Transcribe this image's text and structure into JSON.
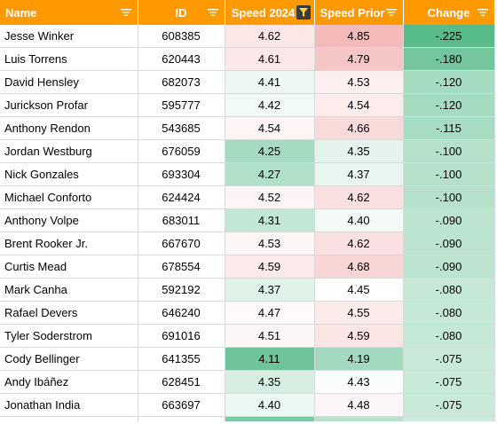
{
  "headers": {
    "name": "Name",
    "id": "ID",
    "speed_2024": "Speed 2024",
    "speed_prior": "Speed Prior",
    "change": "Change"
  },
  "filter_icons": [
    "filter-lines-icon",
    "filter-lines-icon",
    "filter-active-funnel-icon",
    "filter-lines-icon",
    "filter-lines-icon"
  ],
  "rows": [
    {
      "name": "Jesse Winker",
      "id": "608385",
      "speed_2024": "4.62",
      "speed_prior": "4.85",
      "change": "-.225",
      "c24": "#fce6e6",
      "cp": "#f4b9b9",
      "cc": "#57bb8a"
    },
    {
      "name": "Luis Torrens",
      "id": "620443",
      "speed_2024": "4.61",
      "speed_prior": "4.79",
      "change": "-.180",
      "c24": "#fce8e8",
      "cp": "#f6c5c5",
      "cc": "#73c69d"
    },
    {
      "name": "David Hensley",
      "id": "682073",
      "speed_2024": "4.41",
      "speed_prior": "4.53",
      "change": "-.120",
      "c24": "#eef8f2",
      "cp": "#fdefef",
      "cc": "#a5dbc0"
    },
    {
      "name": "Jurickson Profar",
      "id": "595777",
      "speed_2024": "4.42",
      "speed_prior": "4.54",
      "change": "-.120",
      "c24": "#f2faf5",
      "cp": "#fcecec",
      "cc": "#a5dbc0"
    },
    {
      "name": "Anthony Rendon",
      "id": "543685",
      "speed_2024": "4.54",
      "speed_prior": "4.66",
      "change": "-.115",
      "c24": "#fdf4f4",
      "cp": "#f9dada",
      "cc": "#a8dcc2"
    },
    {
      "name": "Jordan Westburg",
      "id": "676059",
      "speed_2024": "4.25",
      "speed_prior": "4.35",
      "change": "-.100",
      "c24": "#a5dbc0",
      "cp": "#e4f4ec",
      "cc": "#b5e1cb"
    },
    {
      "name": "Nick Gonzales",
      "id": "693304",
      "speed_2024": "4.27",
      "speed_prior": "4.37",
      "change": "-.100",
      "c24": "#b1e0c9",
      "cp": "#e9f6ef",
      "cc": "#b5e1cb"
    },
    {
      "name": "Michael Conforto",
      "id": "624424",
      "speed_2024": "4.52",
      "speed_prior": "4.62",
      "change": "-.100",
      "c24": "#fdf5f5",
      "cp": "#fae0e0",
      "cc": "#b5e1cb"
    },
    {
      "name": "Anthony Volpe",
      "id": "683011",
      "speed_2024": "4.31",
      "speed_prior": "4.40",
      "change": "-.090",
      "c24": "#c2e7d4",
      "cp": "#f3faf6",
      "cc": "#bde4d0"
    },
    {
      "name": "Brent Rooker Jr.",
      "id": "667670",
      "speed_2024": "4.53",
      "speed_prior": "4.62",
      "change": "-.090",
      "c24": "#fdf4f4",
      "cp": "#fae0e0",
      "cc": "#bde4d0"
    },
    {
      "name": "Curtis Mead",
      "id": "678554",
      "speed_2024": "4.59",
      "speed_prior": "4.68",
      "change": "-.090",
      "c24": "#fceaea",
      "cp": "#f9d6d6",
      "cc": "#bde4d0"
    },
    {
      "name": "Mark Canha",
      "id": "592192",
      "speed_2024": "4.37",
      "speed_prior": "4.45",
      "change": "-.080",
      "c24": "#def2e8",
      "cp": "#ffffff",
      "cc": "#c6e8d6"
    },
    {
      "name": "Rafael Devers",
      "id": "646240",
      "speed_2024": "4.47",
      "speed_prior": "4.55",
      "change": "-.080",
      "c24": "#fdfaf9",
      "cp": "#fcebeb",
      "cc": "#c6e8d6"
    },
    {
      "name": "Tyler Soderstrom",
      "id": "691016",
      "speed_2024": "4.51",
      "speed_prior": "4.59",
      "change": "-.080",
      "c24": "#fdf6f6",
      "cp": "#fae4e4",
      "cc": "#c6e8d6"
    },
    {
      "name": "Cody Bellinger",
      "id": "641355",
      "speed_2024": "4.11",
      "speed_prior": "4.19",
      "change": "-.075",
      "c24": "#6fc49a",
      "cp": "#a3dabf",
      "cc": "#c9e9d9"
    },
    {
      "name": "Andy Ibáñez",
      "id": "628451",
      "speed_2024": "4.35",
      "speed_prior": "4.43",
      "change": "-.075",
      "c24": "#d7efe3",
      "cp": "#fafdfb",
      "cc": "#c9e9d9"
    },
    {
      "name": "Jonathan India",
      "id": "663697",
      "speed_2024": "4.40",
      "speed_prior": "4.48",
      "change": "-.075",
      "c24": "#ebf7f1",
      "cp": "#fdf6f6",
      "cc": "#c9e9d9"
    }
  ],
  "partial_row": {
    "c24": "#7fcaa5",
    "cp": "#b8e2cd",
    "cc": "#cdebdc"
  }
}
